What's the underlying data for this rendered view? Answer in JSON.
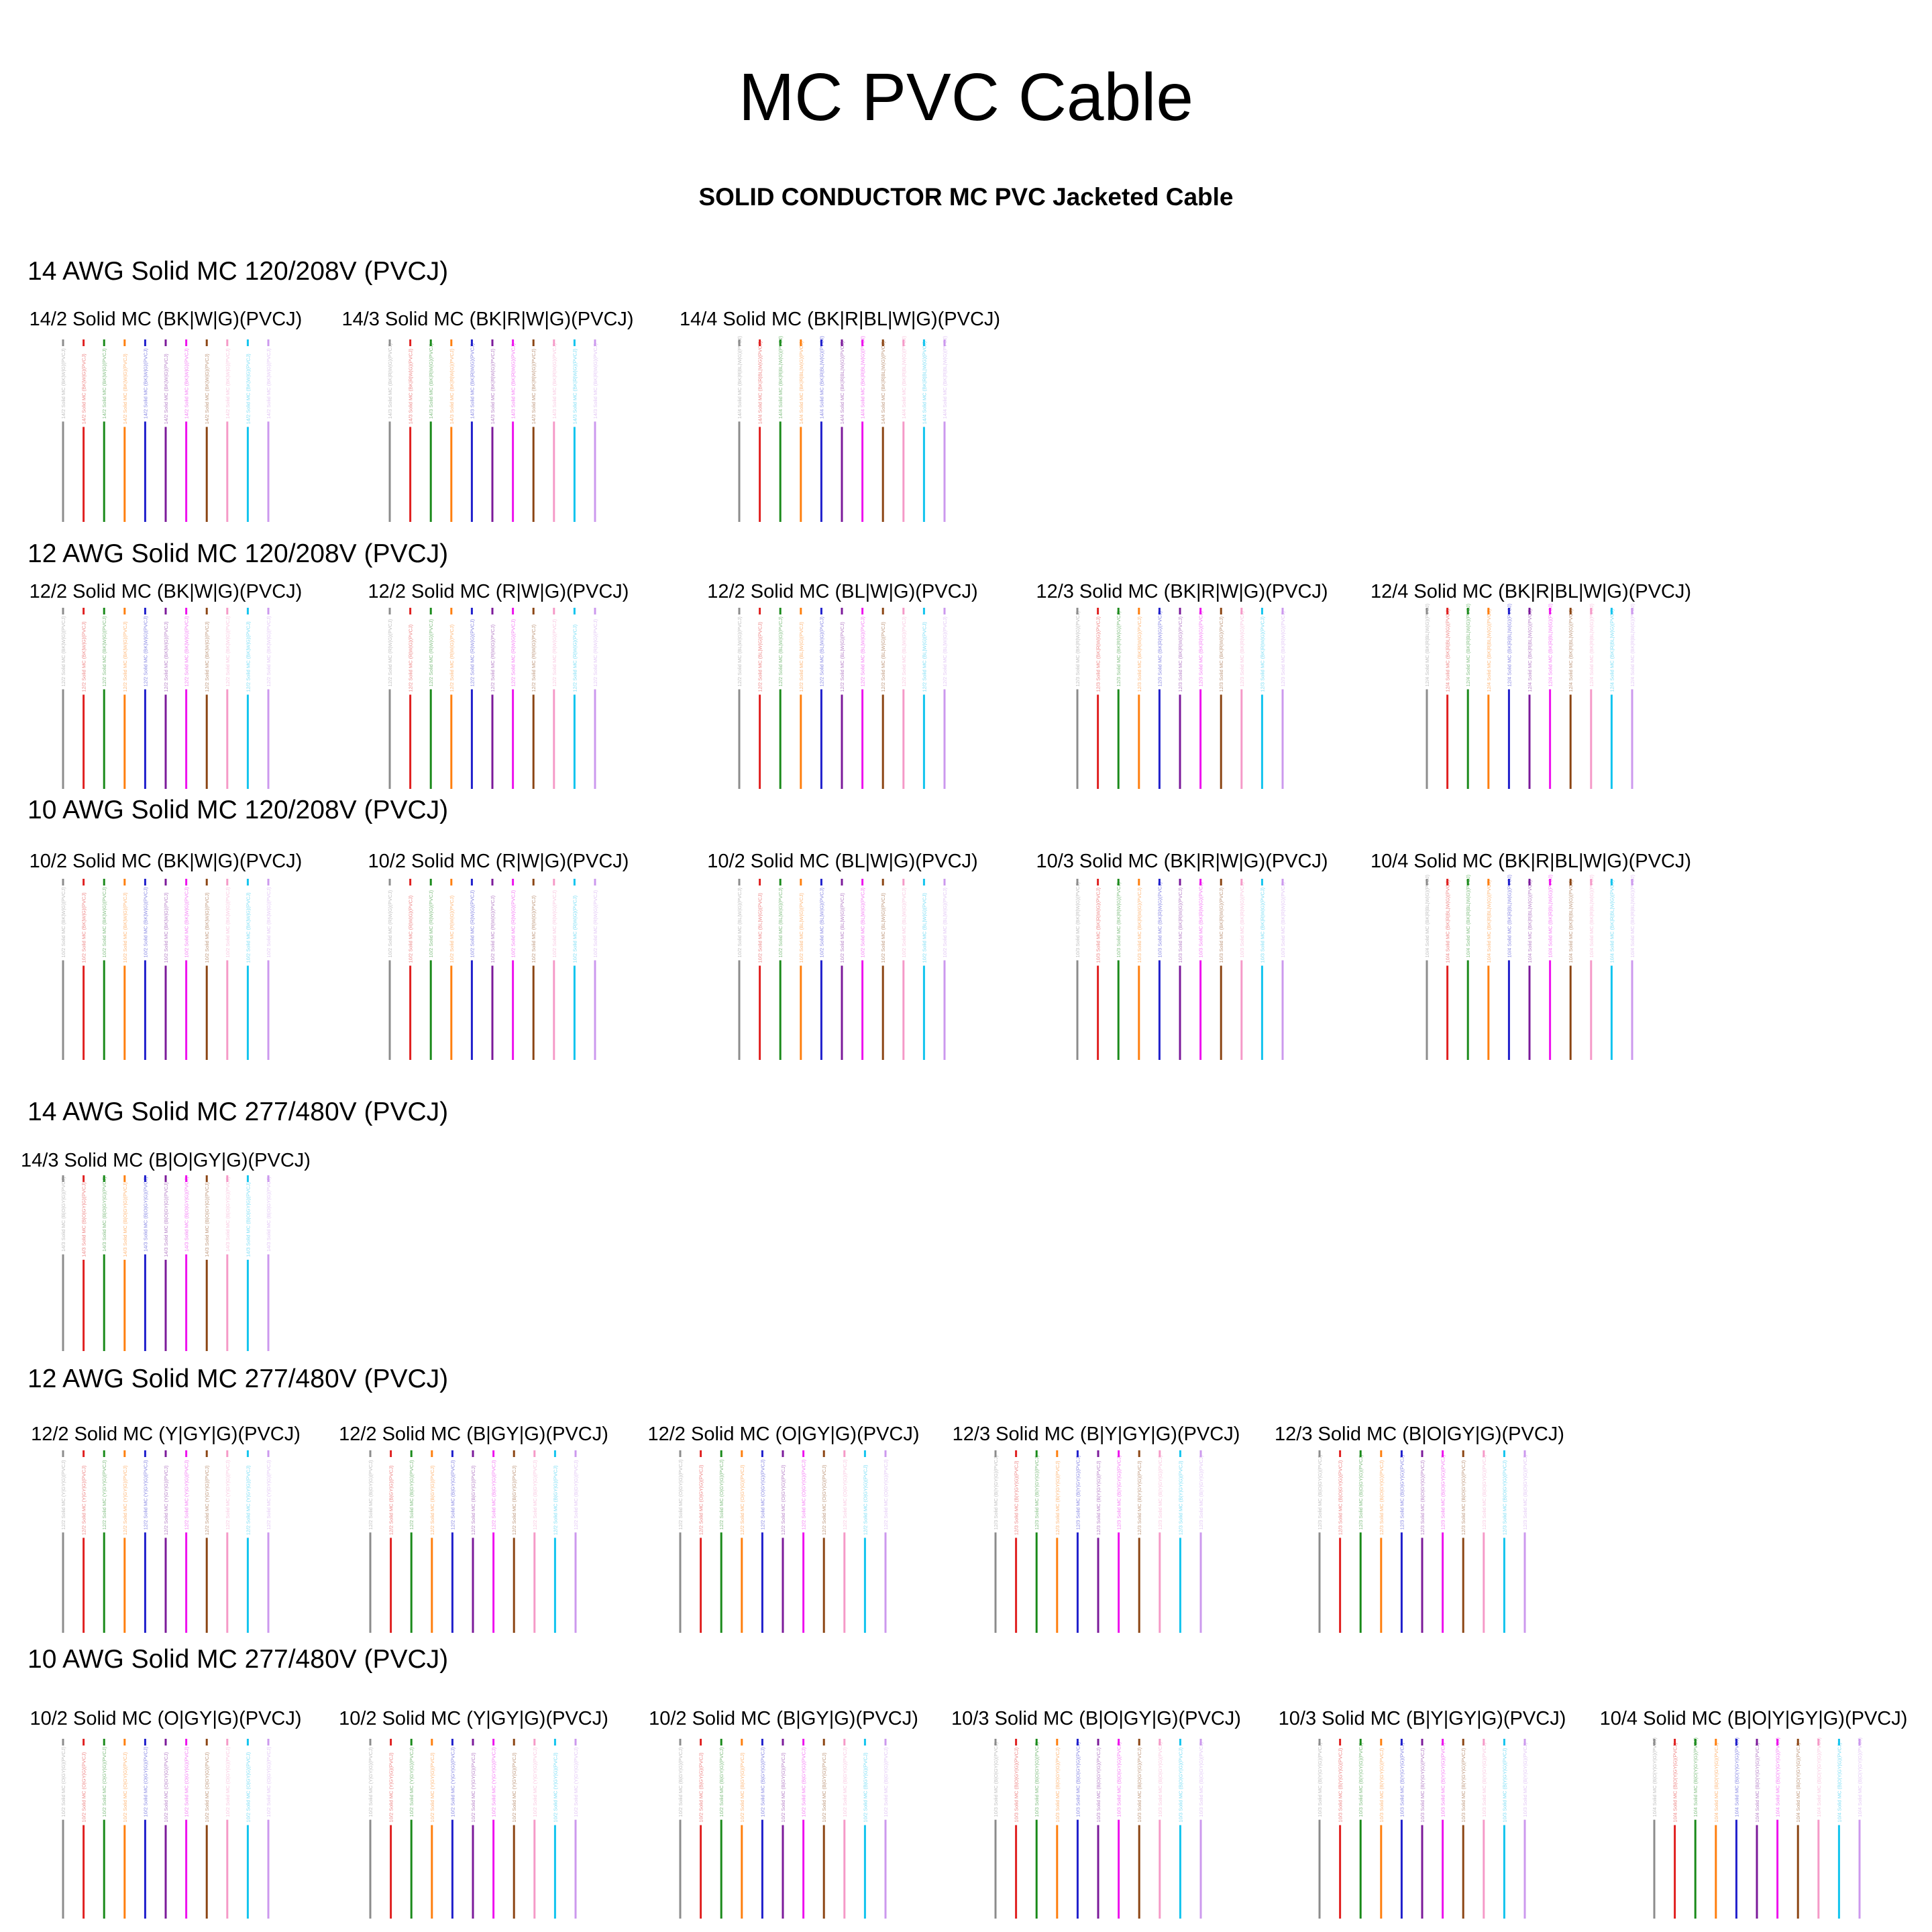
{
  "title": "MC PVC Cable",
  "subtitle": "SOLID CONDUCTOR MC PVC Jacketed Cable",
  "wire_colors": [
    "#8c8c8c",
    "#e02020",
    "#1a8a1a",
    "#ff7f0e",
    "#1f1fcc",
    "#7b1a9a",
    "#ee11ee",
    "#8b4513",
    "#f59ac8",
    "#12c4ee",
    "#cc99ee"
  ],
  "sections": [
    {
      "title": "14 AWG Solid MC 120/208V (PVCJ)",
      "cables": [
        "14/2 Solid MC (BK|W|G)(PVCJ)",
        "14/3 Solid MC (BK|R|W|G)(PVCJ)",
        "14/4 Solid MC (BK|R|BL|W|G)(PVCJ)"
      ]
    },
    {
      "title": "12 AWG Solid MC 120/208V (PVCJ)",
      "cables": [
        "12/2 Solid MC (BK|W|G)(PVCJ)",
        "12/2 Solid MC (R|W|G)(PVCJ)",
        "12/2 Solid MC (BL|W|G)(PVCJ)",
        "12/3 Solid MC (BK|R|W|G)(PVCJ)",
        "12/4 Solid MC (BK|R|BL|W|G)(PVCJ)"
      ]
    },
    {
      "title": "10 AWG Solid MC 120/208V (PVCJ)",
      "cables": [
        "10/2 Solid MC (BK|W|G)(PVCJ)",
        "10/2 Solid MC (R|W|G)(PVCJ)",
        "10/2 Solid MC (BL|W|G)(PVCJ)",
        "10/3 Solid MC (BK|R|W|G)(PVCJ)",
        "10/4 Solid MC (BK|R|BL|W|G)(PVCJ)"
      ]
    },
    {
      "title": "14 AWG Solid MC 277/480V (PVCJ)",
      "cables": [
        "14/3 Solid MC (B|O|GY|G)(PVCJ)"
      ]
    },
    {
      "title": "12 AWG Solid MC 277/480V (PVCJ)",
      "cables": [
        "12/2 Solid MC (Y|GY|G)(PVCJ)",
        "12/2 Solid MC (B|GY|G)(PVCJ)",
        "12/2 Solid MC (O|GY|G)(PVCJ)",
        "12/3 Solid MC (B|Y|GY|G)(PVCJ)",
        "12/3 Solid MC (B|O|GY|G)(PVCJ)"
      ]
    },
    {
      "title": "10 AWG Solid MC 277/480V (PVCJ)",
      "cables": [
        "10/2 Solid MC (O|GY|G)(PVCJ)",
        "10/2 Solid MC (Y|GY|G)(PVCJ)",
        "10/2 Solid MC (B|GY|G)(PVCJ)",
        "10/3 Solid MC (B|O|GY|G)(PVCJ)",
        "10/3 Solid MC (B|Y|GY|G)(PVCJ)",
        "10/4 Solid MC (B|O|Y|GY|G)(PVCJ)"
      ]
    }
  ]
}
